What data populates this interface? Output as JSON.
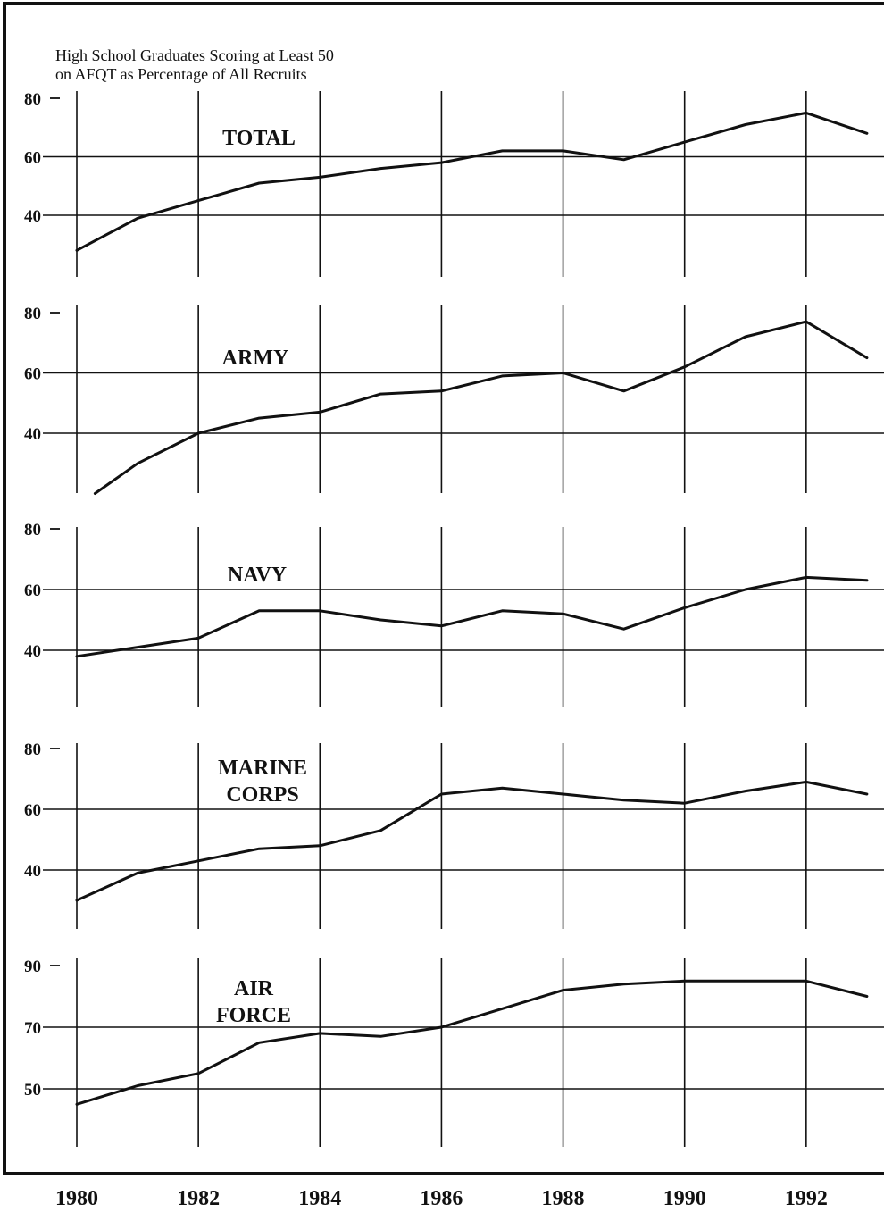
{
  "title_lines": [
    "High School Graduates Scoring at Least 50",
    "on AFQT as Percentage of All Recruits"
  ],
  "chart_data": [
    {
      "type": "line",
      "label_lines": [
        "TOTAL"
      ],
      "x": [
        1980,
        1981,
        1982,
        1983,
        1984,
        1985,
        1986,
        1987,
        1988,
        1989,
        1990,
        1991,
        1992,
        1993
      ],
      "values": [
        28,
        39,
        45,
        51,
        53,
        56,
        58,
        62,
        62,
        59,
        65,
        71,
        75,
        68
      ],
      "yticks": [
        40,
        60,
        80
      ],
      "ylim": [
        22,
        81
      ],
      "grid": true
    },
    {
      "type": "line",
      "label_lines": [
        "ARMY"
      ],
      "x": [
        1980.3,
        1981,
        1982,
        1983,
        1984,
        1985,
        1986,
        1987,
        1988,
        1989,
        1990,
        1991,
        1992,
        1993
      ],
      "values": [
        20,
        30,
        40,
        45,
        47,
        53,
        54,
        59,
        60,
        54,
        62,
        72,
        77,
        65
      ],
      "yticks": [
        40,
        60,
        80
      ],
      "ylim": [
        20,
        81
      ],
      "grid": true
    },
    {
      "type": "line",
      "label_lines": [
        "NAVY"
      ],
      "x": [
        1980,
        1981,
        1982,
        1983,
        1984,
        1985,
        1986,
        1987,
        1988,
        1989,
        1990,
        1991,
        1992,
        1993
      ],
      "values": [
        38,
        41,
        44,
        53,
        53,
        50,
        48,
        53,
        52,
        47,
        54,
        60,
        64,
        63
      ],
      "yticks": [
        40,
        60,
        80
      ],
      "ylim": [
        20,
        81
      ],
      "grid": true
    },
    {
      "type": "line",
      "label_lines": [
        "MARINE",
        "CORPS"
      ],
      "x": [
        1980,
        1981,
        1982,
        1983,
        1984,
        1985,
        1986,
        1987,
        1988,
        1989,
        1990,
        1991,
        1992,
        1993
      ],
      "values": [
        30,
        39,
        43,
        47,
        48,
        53,
        65,
        67,
        65,
        63,
        62,
        66,
        69,
        65
      ],
      "yticks": [
        40,
        60,
        80
      ],
      "ylim": [
        20,
        81
      ],
      "grid": true
    },
    {
      "type": "line",
      "label_lines": [
        "AIR",
        "FORCE"
      ],
      "x": [
        1980,
        1981,
        1982,
        1983,
        1984,
        1985,
        1986,
        1987,
        1988,
        1989,
        1990,
        1991,
        1992,
        1993
      ],
      "values": [
        45,
        51,
        55,
        65,
        68,
        67,
        70,
        76,
        82,
        84,
        85,
        85,
        85,
        80
      ],
      "yticks": [
        50,
        70,
        90
      ],
      "ylim": [
        31,
        91
      ],
      "grid": true
    }
  ],
  "x_ticks": [
    "1980",
    "1982",
    "1984",
    "1986",
    "1988",
    "1990",
    "1992"
  ]
}
